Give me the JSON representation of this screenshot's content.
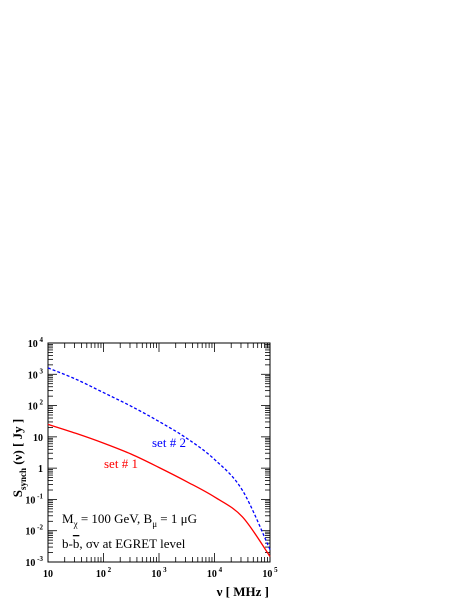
{
  "chart_data": {
    "type": "line",
    "x_scale": "log",
    "y_scale": "log",
    "xlim": [
      10,
      100000
    ],
    "ylim": [
      0.001,
      10000
    ],
    "grid": false,
    "xlabel": "ν [ MHz ]",
    "ylabel": {
      "main": "S",
      "sub": "synch",
      "rest": " (ν) [ Jy ]"
    },
    "x_ticks": [
      {
        "value": 10,
        "base": "10",
        "exp": ""
      },
      {
        "value": 100,
        "base": "10",
        "exp": "2"
      },
      {
        "value": 1000,
        "base": "10",
        "exp": "3"
      },
      {
        "value": 10000,
        "base": "10",
        "exp": "4"
      },
      {
        "value": 100000,
        "base": "10",
        "exp": "5"
      }
    ],
    "y_ticks": [
      {
        "value": 0.001,
        "base": "10",
        "exp": "-3"
      },
      {
        "value": 0.01,
        "base": "10",
        "exp": "-2"
      },
      {
        "value": 0.1,
        "base": "10",
        "exp": "-1"
      },
      {
        "value": 1,
        "base": "1",
        "exp": ""
      },
      {
        "value": 10,
        "base": "10",
        "exp": ""
      },
      {
        "value": 100,
        "base": "10",
        "exp": "2"
      },
      {
        "value": 1000,
        "base": "10",
        "exp": "3"
      },
      {
        "value": 10000,
        "base": "10",
        "exp": "4"
      }
    ],
    "series": [
      {
        "name": "set # 2",
        "color": "#0000ff",
        "style": "dashed",
        "x": [
          10,
          31.6,
          100,
          316,
          1000,
          3162,
          10000,
          31623,
          100000
        ],
        "y": [
          1600,
          700,
          260,
          95,
          31,
          9,
          1.9,
          0.2,
          0.0025
        ]
      },
      {
        "name": "set # 1",
        "color": "#ff0000",
        "style": "solid",
        "x": [
          10,
          31.6,
          100,
          316,
          1000,
          3162,
          10000,
          31623,
          100000
        ],
        "y": [
          25,
          13,
          6.3,
          2.8,
          1.05,
          0.37,
          0.12,
          0.028,
          0.0015
        ]
      }
    ],
    "annotations": [
      {
        "id": "mass-field",
        "text_parts": [
          "M",
          "χ",
          " = 100 GeV,  B",
          "μ",
          " = 1 μG"
        ]
      },
      {
        "id": "channel",
        "text_parts": [
          "b-",
          "b",
          ",  σv at EGRET level"
        ]
      }
    ]
  }
}
